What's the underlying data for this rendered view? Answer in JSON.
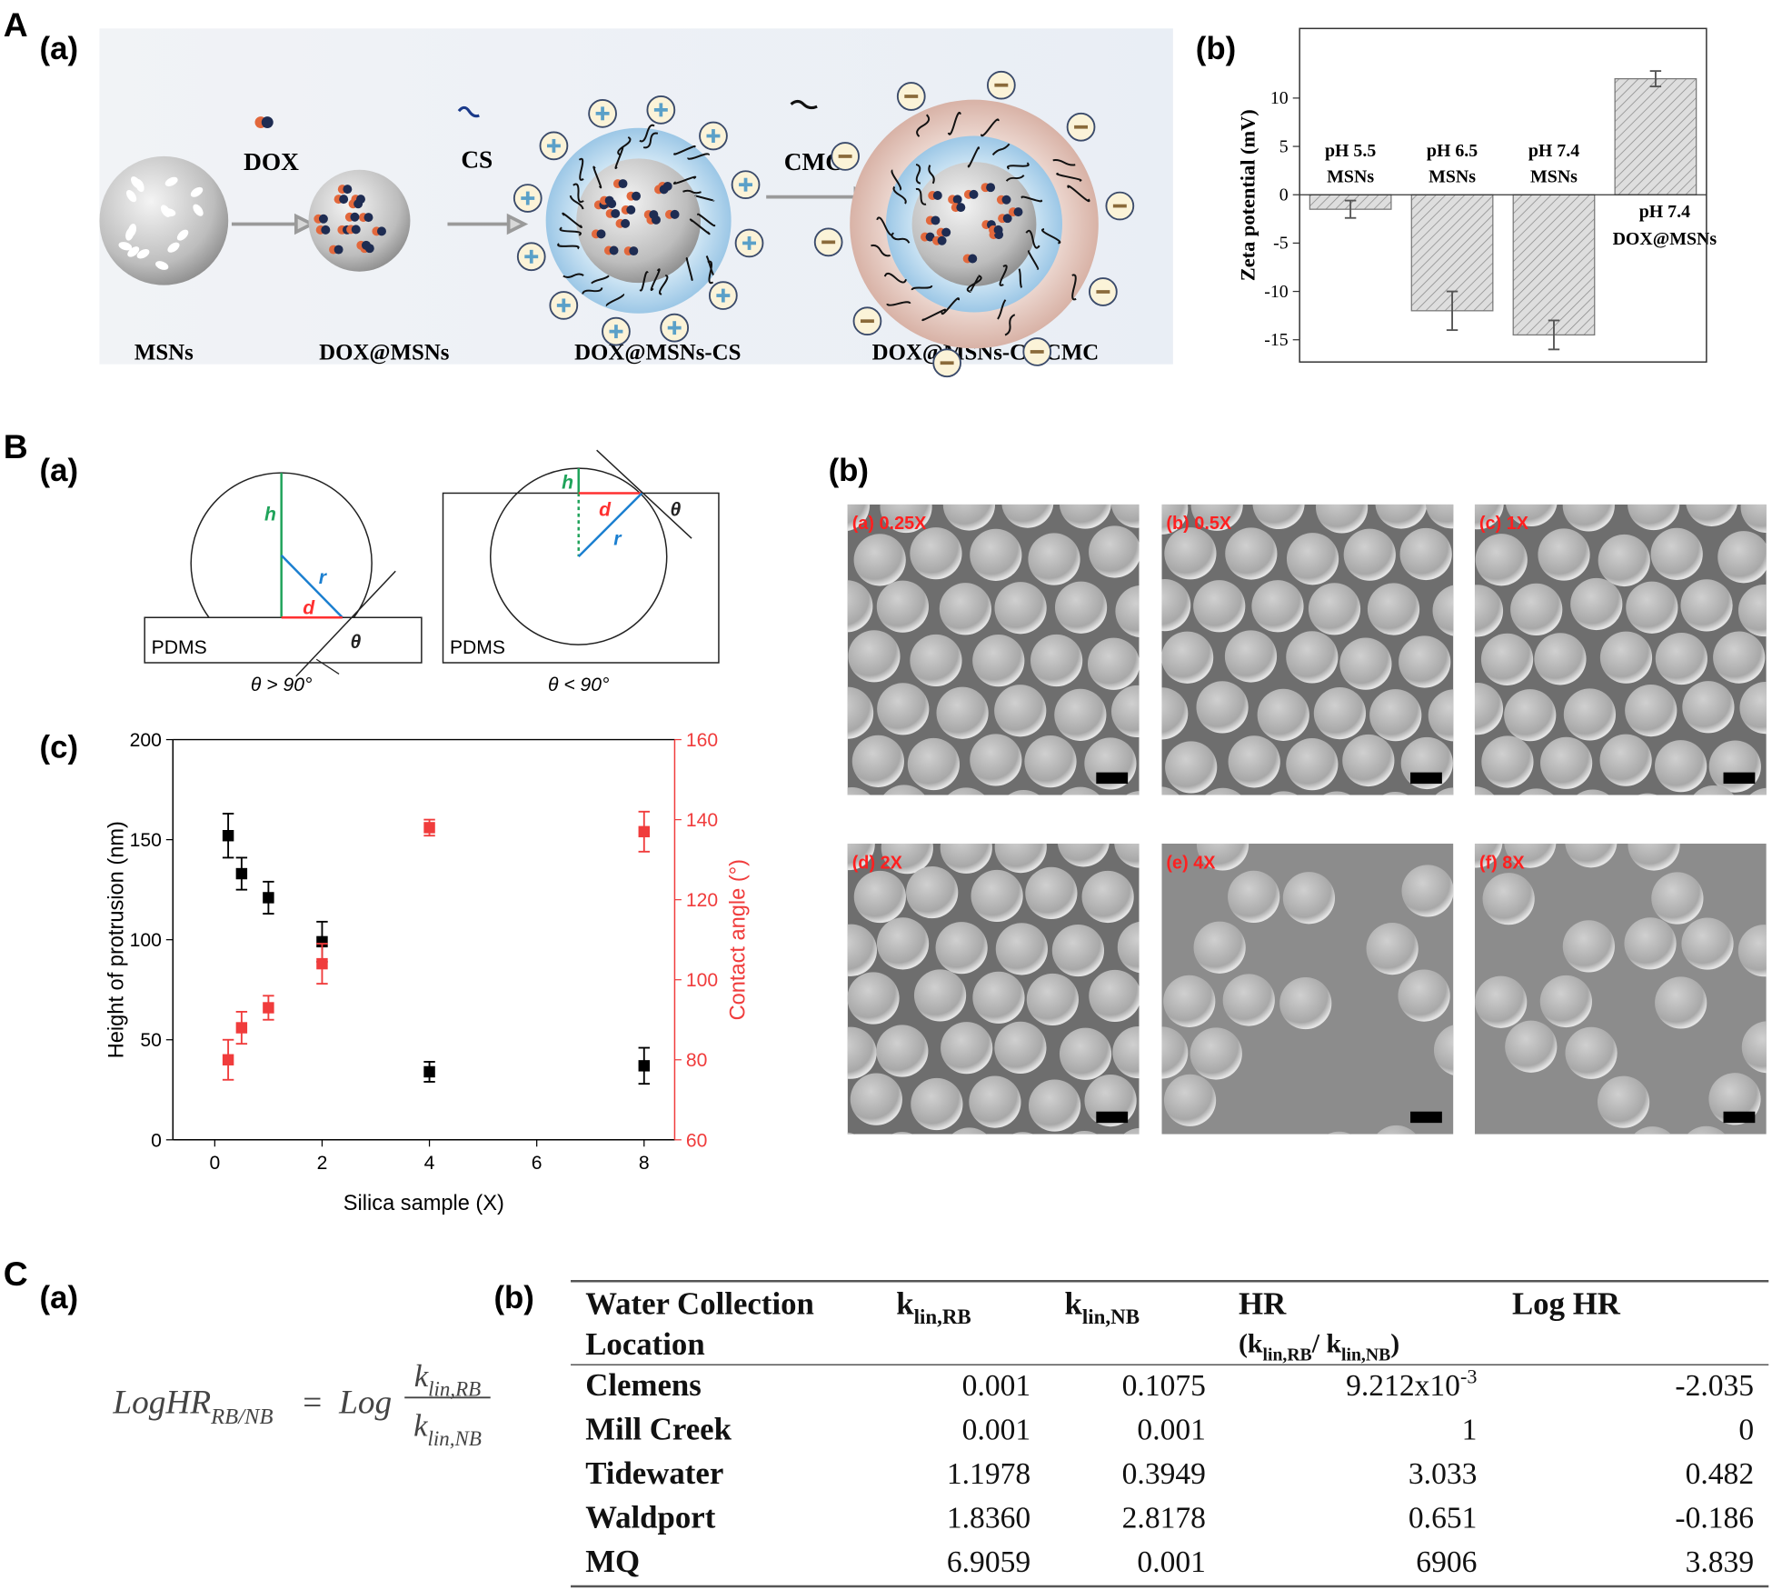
{
  "panel_labels": {
    "A": "A",
    "A_a": "(a)",
    "A_b": "(b)",
    "B": "B",
    "B_a": "(a)",
    "B_b": "(b)",
    "B_c": "(c)",
    "C": "C",
    "C_a": "(a)",
    "C_b": "(b)"
  },
  "scheme": {
    "reagents": [
      "DOX",
      "CS",
      "CMC"
    ],
    "stages": [
      "MSNs",
      "DOX@MSNs",
      "DOX@MSNs-CS",
      "DOX@MSNs-CS/CMC"
    ]
  },
  "geometry": {
    "left": {
      "h": "h",
      "r": "r",
      "d": "d",
      "theta": "θ",
      "substrate": "PDMS",
      "condition": "θ > 90°"
    },
    "right": {
      "h": "h",
      "r": "r",
      "d": "d",
      "theta": "θ",
      "substrate": "PDMS",
      "condition": "θ < 90°"
    }
  },
  "sem_images": [
    "(a) 0.25X",
    "(b) 0.5X",
    "(c) 1X",
    "(d) 2X",
    "(e) 4X",
    "(f) 8X"
  ],
  "chart_data": [
    {
      "type": "bar",
      "ylabel": "Zeta potential (mV)",
      "categories": [
        [
          "pH 5.5",
          "MSNs"
        ],
        [
          "pH 6.5",
          "MSNs"
        ],
        [
          "pH 7.4",
          "MSNs"
        ],
        [
          "pH 7.4",
          "DOX@MSNs"
        ]
      ],
      "values": [
        -1.5,
        -12,
        -14.5,
        12
      ],
      "errors": [
        0.9,
        2,
        1.5,
        0.8
      ],
      "color": "#dedede",
      "hatch": true,
      "ylim": [
        -17.3,
        17.2
      ],
      "yticks": [
        -15,
        -10,
        -5,
        0,
        5,
        10
      ]
    },
    {
      "type": "scatter",
      "xlabel": "Silica sample (X)",
      "ylabel": "Height of protrusion (nm)",
      "y2label": "Contact angle (°)",
      "x": [
        0.25,
        0.5,
        1,
        2,
        4,
        8
      ],
      "series": [
        {
          "color": "#000000",
          "values": [
            152,
            133,
            121,
            99,
            34,
            37
          ],
          "errors": [
            11,
            8,
            8,
            10,
            5,
            9
          ]
        },
        {
          "color": "#f03c3c",
          "axis": "y2",
          "values": [
            80,
            88,
            93,
            104,
            138,
            137
          ],
          "errors": [
            5,
            4,
            3,
            5,
            2,
            5
          ]
        }
      ],
      "xlim": [
        -0.78,
        8.57
      ],
      "xticks": [
        0,
        2,
        4,
        6,
        8
      ],
      "ylim": [
        0,
        200
      ],
      "yticks": [
        0,
        50,
        100,
        150,
        200
      ],
      "y2lim": [
        60,
        160
      ],
      "y2ticks": [
        60,
        80,
        100,
        120,
        140,
        160
      ]
    }
  ],
  "equation": {
    "lhs": {
      "text": "LogHR",
      "subscript": "RB/NB"
    },
    "operator": "=",
    "function": "Log",
    "numerator": {
      "text": "k",
      "subscript": "lin,RB"
    },
    "denominator": {
      "text": "k",
      "subscript": "lin,NB"
    }
  },
  "table": {
    "header": [
      {
        "lines": [
          "Water Collection",
          "Location"
        ]
      },
      {
        "text": "k",
        "subscript": "lin,RB"
      },
      {
        "text": "k",
        "subscript": "lin,NB"
      },
      {
        "lines": [
          "HR"
        ],
        "detail": [
          {
            "text": "(k",
            "subscript": "lin,RB"
          },
          {
            "text": "/ k",
            "subscript": "lin,NB"
          },
          {
            "text": ")"
          }
        ]
      },
      {
        "lines": [
          "Log HR"
        ]
      }
    ],
    "rows": [
      [
        "Clemens",
        "0.001",
        "0.1075",
        {
          "text": "9.212x10",
          "superscript": "-3"
        },
        "-2.035"
      ],
      [
        "Mill Creek",
        "0.001",
        "0.001",
        "1",
        "0"
      ],
      [
        "Tidewater",
        "1.1978",
        "0.3949",
        "3.033",
        "0.482"
      ],
      [
        "Waldport",
        "1.8360",
        "2.8178",
        "0.651",
        "-0.186"
      ],
      [
        "MQ",
        "6.9059",
        "0.001",
        "6906",
        "3.839"
      ]
    ]
  }
}
